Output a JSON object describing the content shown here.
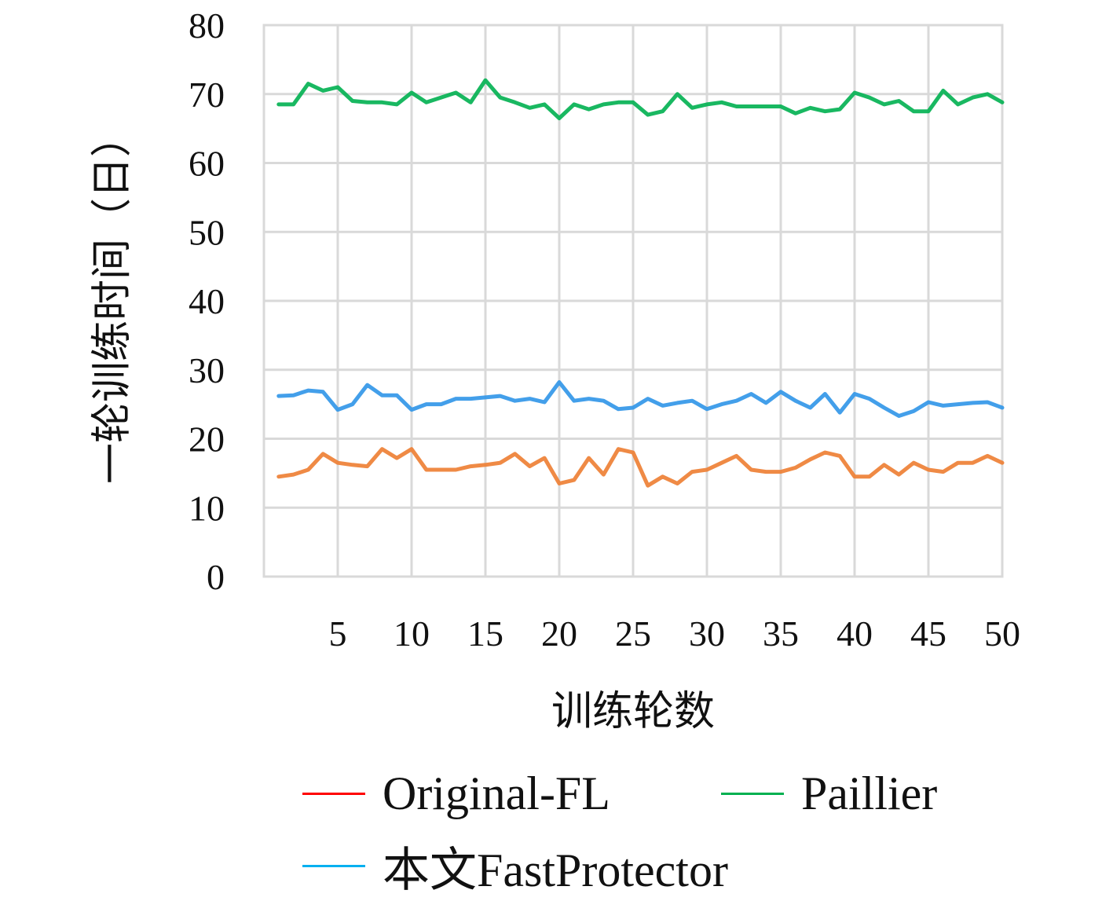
{
  "chart_data": {
    "type": "line",
    "xlabel": "训练轮数",
    "ylabel": "一轮训练时间（日）",
    "xlim": [
      1,
      50
    ],
    "ylim": [
      0,
      80
    ],
    "x_ticks": [
      5,
      10,
      15,
      20,
      25,
      30,
      35,
      40,
      45,
      50
    ],
    "y_ticks": [
      0,
      10,
      20,
      30,
      40,
      50,
      60,
      70,
      80
    ],
    "grid": true,
    "legend_position": "bottom",
    "x": [
      1,
      2,
      3,
      4,
      5,
      6,
      7,
      8,
      9,
      10,
      11,
      12,
      13,
      14,
      15,
      16,
      17,
      18,
      19,
      20,
      21,
      22,
      23,
      24,
      25,
      26,
      27,
      28,
      29,
      30,
      31,
      32,
      33,
      34,
      35,
      36,
      37,
      38,
      39,
      40,
      41,
      42,
      43,
      44,
      45,
      46,
      47,
      48,
      49,
      50
    ],
    "series": [
      {
        "name": "Original-FL",
        "color": "#ff0000",
        "plotted_color": "#ed7d31",
        "values": [
          14.5,
          14.8,
          15.5,
          17.8,
          16.5,
          16.2,
          16.0,
          18.5,
          17.2,
          18.5,
          15.5,
          15.5,
          15.5,
          16.0,
          16.2,
          16.5,
          17.8,
          16.0,
          17.2,
          13.5,
          14.0,
          17.2,
          14.8,
          18.5,
          18.0,
          13.2,
          14.5,
          13.5,
          15.2,
          15.5,
          16.5,
          17.5,
          15.5,
          15.2,
          15.2,
          15.8,
          17.0,
          18.0,
          17.5,
          14.5,
          14.5,
          16.2,
          14.8,
          16.5,
          15.5,
          15.2,
          16.5,
          16.5,
          17.5,
          16.5
        ]
      },
      {
        "name": "Paillier",
        "color": "#00b050",
        "plotted_color": "#00b050",
        "values": [
          68.5,
          68.5,
          71.5,
          70.5,
          71.0,
          69.0,
          68.8,
          68.8,
          68.5,
          70.2,
          68.8,
          69.5,
          70.2,
          68.8,
          72.0,
          69.5,
          68.8,
          68.0,
          68.5,
          66.5,
          68.5,
          67.8,
          68.5,
          68.8,
          68.8,
          67.0,
          67.5,
          70.0,
          68.0,
          68.5,
          68.8,
          68.2,
          68.2,
          68.2,
          68.2,
          67.2,
          68.0,
          67.5,
          67.8,
          70.2,
          69.5,
          68.5,
          69.0,
          67.5,
          67.5,
          70.5,
          68.5,
          69.5,
          70.0,
          68.8
        ]
      },
      {
        "name": "本文FastProtector",
        "color": "#00b0f0",
        "plotted_color": "#2f95e8",
        "values": [
          26.2,
          26.3,
          27.0,
          26.8,
          24.2,
          25.0,
          27.8,
          26.3,
          26.3,
          24.2,
          25.0,
          25.0,
          25.8,
          25.8,
          26.0,
          26.2,
          25.5,
          25.8,
          25.3,
          28.2,
          25.5,
          25.8,
          25.5,
          24.3,
          24.5,
          25.8,
          24.8,
          25.2,
          25.5,
          24.3,
          25.0,
          25.5,
          26.5,
          25.2,
          26.8,
          25.5,
          24.5,
          26.5,
          23.8,
          26.5,
          25.8,
          24.5,
          23.3,
          24.0,
          25.3,
          24.8,
          25.0,
          25.2,
          25.3,
          24.5
        ]
      }
    ]
  }
}
